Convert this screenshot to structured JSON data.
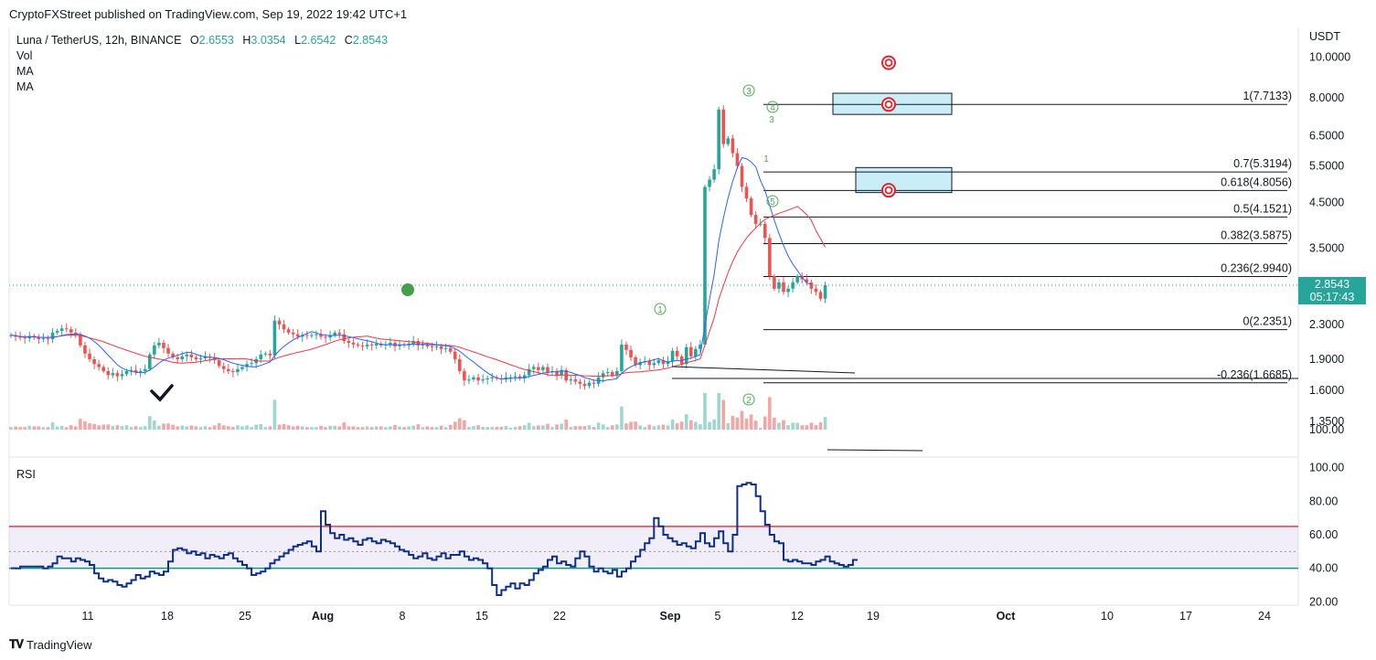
{
  "header": {
    "publisher_line": "CryptoFXStreet published on TradingView.com, Sep 19, 2022 19:42 UTC+1"
  },
  "legend": {
    "symbol": "Luna / TetherUS, 12h, BINANCE",
    "o_label": "O",
    "o": "2.6553",
    "h_label": "H",
    "h": "3.0354",
    "l_label": "L",
    "l": "2.6542",
    "c_label": "C",
    "c": "2.8543",
    "vol": "Vol",
    "ma1": "MA",
    "ma2": "MA"
  },
  "price_tag": {
    "price": "2.8543",
    "countdown": "05:17:43"
  },
  "rsi_label": "RSI",
  "footer": {
    "brand": "TradingView"
  },
  "colors": {
    "up": "#26a69a",
    "down": "#ef5350",
    "ma_fast": "#2962ff",
    "ma_slow": "#f23645",
    "rsi": "#0d2f8c",
    "upper_band": "#f23645",
    "lower_band": "#089981",
    "fib_box": "#c9eef7",
    "target": "#e0242b"
  },
  "chart_data": [
    {
      "type": "candlestick",
      "title": "Luna / TetherUS, 12h, BINANCE",
      "ylabel": "USDT",
      "y_scale": "log",
      "y_ticks": [
        "10.0000",
        "8.0000",
        "6.5000",
        "5.5000",
        "4.5000",
        "3.5000",
        "2.3000",
        "1.9000",
        "1.6000",
        "1.3500",
        "100.00"
      ],
      "x_ticks": [
        "11",
        "18",
        "25",
        "Aug",
        "8",
        "15",
        "22",
        "Sep",
        "5",
        "12",
        "19",
        "Oct",
        "10",
        "17",
        "24"
      ],
      "ylim": [
        1.29,
        11.2
      ],
      "close_series": [
        2.17,
        2.15,
        2.14,
        2.13,
        2.16,
        2.14,
        2.12,
        2.13,
        2.12,
        2.2,
        2.22,
        2.25,
        2.24,
        2.2,
        2.18,
        2.05,
        1.96,
        1.9,
        1.85,
        1.82,
        1.78,
        1.74,
        1.76,
        1.73,
        1.75,
        1.78,
        1.79,
        1.77,
        1.78,
        1.8,
        1.95,
        2.05,
        2.08,
        2.02,
        1.96,
        1.92,
        1.9,
        1.93,
        1.95,
        1.92,
        1.9,
        1.91,
        1.93,
        1.92,
        1.89,
        1.83,
        1.8,
        1.78,
        1.77,
        1.8,
        1.82,
        1.85,
        1.86,
        1.9,
        1.95,
        1.96,
        1.94,
        2.35,
        2.3,
        2.24,
        2.2,
        2.18,
        2.15,
        2.17,
        2.16,
        2.17,
        2.18,
        2.15,
        2.14,
        2.17,
        2.2,
        2.18,
        2.1,
        2.08,
        2.06,
        2.05,
        2.04,
        2.06,
        2.05,
        2.07,
        2.05,
        2.06,
        2.08,
        2.04,
        2.06,
        2.05,
        2.07,
        2.1,
        2.05,
        2.06,
        2.04,
        2.03,
        2.04,
        2.01,
        2.02,
        1.98,
        1.9,
        1.78,
        1.69,
        1.7,
        1.72,
        1.69,
        1.7,
        1.71,
        1.72,
        1.71,
        1.7,
        1.72,
        1.72,
        1.73,
        1.71,
        1.74,
        1.8,
        1.82,
        1.79,
        1.82,
        1.77,
        1.78,
        1.74,
        1.79,
        1.69,
        1.7,
        1.68,
        1.66,
        1.64,
        1.67,
        1.66,
        1.72,
        1.76,
        1.77,
        1.74,
        1.78,
        2.06,
        2.0,
        1.92,
        1.84,
        1.87,
        1.88,
        1.84,
        1.86,
        1.89,
        1.85,
        1.88,
        1.99,
        1.93,
        1.85,
        2.03,
        1.93,
        2.01,
        2.06,
        4.9,
        5.1,
        5.4,
        7.5,
        6.2,
        6.4,
        5.9,
        5.5,
        4.9,
        4.6,
        4.2,
        4.0,
        4.0,
        3.7,
        3.0,
        2.8,
        2.9,
        2.75,
        2.8,
        2.9,
        3.0,
        2.95,
        2.9,
        2.8,
        2.75,
        2.65,
        2.8543
      ],
      "ma_fast_visible": true,
      "ma_slow_visible": true,
      "horizontal_line": {
        "label": "",
        "value": 2.8543
      },
      "fibonacci": [
        {
          "label": "1(7.7133)",
          "level": 1,
          "value": 7.7133
        },
        {
          "label": "0.7(5.3194)",
          "level": 0.7,
          "value": 5.3194
        },
        {
          "label": "0.618(4.8056)",
          "level": 0.618,
          "value": 4.8056
        },
        {
          "label": "0.5(4.1521)",
          "level": 0.5,
          "value": 4.1521
        },
        {
          "label": "0.382(3.5875)",
          "level": 0.382,
          "value": 3.5875
        },
        {
          "label": "0.236(2.9940)",
          "level": 0.236,
          "value": 2.994
        },
        {
          "label": "0(2.2351)",
          "level": 0,
          "value": 2.2351
        },
        {
          "label": "-0.236(1.6685)",
          "level": -0.236,
          "value": 1.6685
        }
      ],
      "wave_labels": [
        "1",
        "2",
        "3",
        "4",
        "5",
        "3",
        "1"
      ],
      "target_zones": [
        {
          "from": 7.3,
          "to": 8.2
        },
        {
          "from": 4.75,
          "to": 5.45
        }
      ],
      "targets": [
        9.7,
        7.71,
        4.81
      ]
    },
    {
      "type": "line",
      "title": "RSI",
      "y_ticks": [
        "100.00",
        "80.00",
        "60.00",
        "40.00",
        "20.00"
      ],
      "ylim": [
        18,
        102
      ],
      "upper_band": 65,
      "middle_band": 50,
      "lower_band": 40,
      "values": [
        40,
        40,
        41,
        41,
        41,
        41,
        41,
        40,
        41,
        43,
        47,
        46,
        46,
        44,
        46,
        45,
        44,
        42,
        37,
        34,
        32,
        33,
        32,
        30,
        29,
        31,
        33,
        36,
        34,
        35,
        38,
        37,
        36,
        38,
        44,
        51,
        52,
        51,
        49,
        50,
        48,
        49,
        46,
        48,
        47,
        46,
        48,
        49,
        46,
        44,
        42,
        40,
        36,
        37,
        38,
        40,
        43,
        45,
        47,
        49,
        51,
        53,
        54,
        55,
        56,
        53,
        50,
        74,
        66,
        61,
        58,
        60,
        57,
        58,
        56,
        54,
        57,
        58,
        56,
        55,
        57,
        56,
        55,
        53,
        51,
        50,
        48,
        46,
        47,
        49,
        46,
        45,
        47,
        49,
        46,
        48,
        48,
        50,
        47,
        45,
        46,
        45,
        43,
        40,
        30,
        24,
        27,
        29,
        31,
        28,
        31,
        30,
        33,
        37,
        39,
        41,
        45,
        47,
        43,
        44,
        42,
        41,
        46,
        50,
        47,
        41,
        38,
        40,
        38,
        37,
        39,
        35,
        38,
        40,
        44,
        47,
        51,
        55,
        58,
        70,
        65,
        60,
        58,
        56,
        54,
        55,
        53,
        52,
        56,
        61,
        55,
        53,
        58,
        62,
        55,
        50,
        60,
        89,
        90,
        91,
        90,
        83,
        74,
        66,
        60,
        56,
        55,
        45,
        44,
        45,
        44,
        43,
        43,
        42,
        44,
        45,
        47,
        44,
        43,
        42,
        41,
        42,
        45
      ]
    }
  ]
}
